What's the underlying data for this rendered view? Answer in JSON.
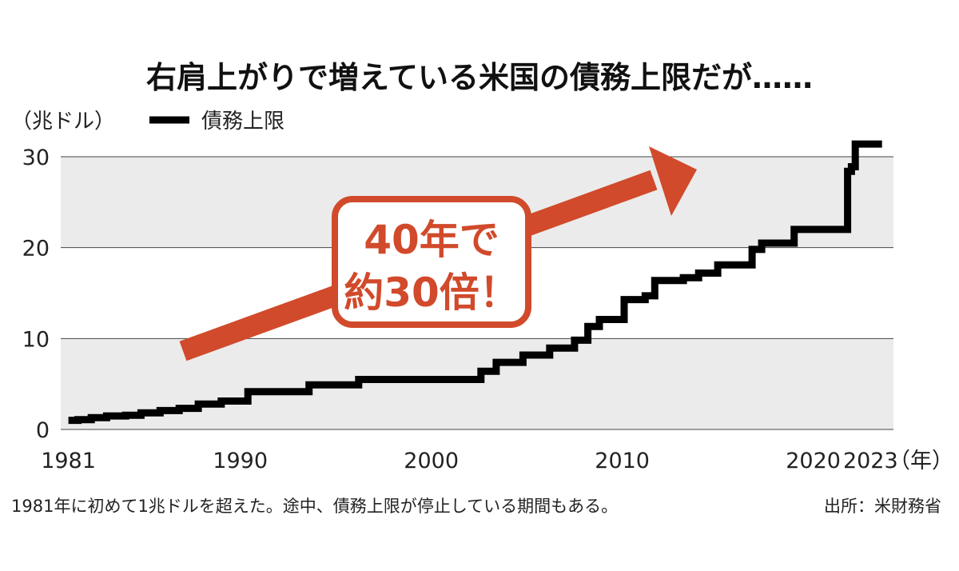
{
  "colors": {
    "band": "#ebebeb",
    "grid": "#444444",
    "series": "#000000",
    "accent": "#d14a2b",
    "text": "#222222"
  },
  "chart_data": {
    "type": "line",
    "title": "右肩上がりで増えている米国の債務上限だが……",
    "unit_label": "（兆ドル）",
    "x_suffix_label": "（年）",
    "ylim": [
      0,
      30
    ],
    "yticks": [
      "0",
      "10",
      "20",
      "30"
    ],
    "xlim": [
      1980.6,
      2024.2
    ],
    "xtick_values": [
      1981,
      1990,
      2000,
      2010,
      2020,
      2023
    ],
    "xtick_labels": [
      "1981",
      "1990",
      "2000",
      "2010",
      "2020",
      "2023"
    ],
    "grid": "horizontal",
    "background": "alternating gray bands",
    "legend_position": "top-left",
    "series": [
      {
        "name": "債務上限",
        "step_points": [
          [
            1981.0,
            1.0
          ],
          [
            1981.5,
            1.08
          ],
          [
            1982.2,
            1.29
          ],
          [
            1983.0,
            1.49
          ],
          [
            1984.0,
            1.57
          ],
          [
            1984.8,
            1.82
          ],
          [
            1985.8,
            2.08
          ],
          [
            1986.8,
            2.32
          ],
          [
            1987.8,
            2.8
          ],
          [
            1989.0,
            3.12
          ],
          [
            1990.4,
            4.15
          ],
          [
            1993.6,
            4.9
          ],
          [
            1996.2,
            5.5
          ],
          [
            2002.6,
            6.4
          ],
          [
            2003.4,
            7.38
          ],
          [
            2004.8,
            8.18
          ],
          [
            2006.2,
            8.96
          ],
          [
            2007.5,
            9.82
          ],
          [
            2008.2,
            11.32
          ],
          [
            2008.8,
            12.1
          ],
          [
            2010.1,
            14.29
          ],
          [
            2011.2,
            14.7
          ],
          [
            2011.7,
            16.39
          ],
          [
            2013.2,
            16.7
          ],
          [
            2014.0,
            17.2
          ],
          [
            2015.0,
            18.1
          ],
          [
            2016.8,
            19.8
          ],
          [
            2017.3,
            20.5
          ],
          [
            2019.0,
            22.0
          ],
          [
            2021.8,
            28.4
          ],
          [
            2022.0,
            28.9
          ],
          [
            2022.2,
            31.4
          ],
          [
            2023.6,
            31.4
          ]
        ]
      }
    ],
    "annotations": [
      {
        "type": "arrow",
        "direction": "up-right"
      },
      {
        "type": "callout",
        "lines": [
          "40年で",
          "約30倍！"
        ]
      }
    ],
    "footnote": "1981年に初めて1兆ドルを超えた。途中、債務上限が停止している期間もある。",
    "source": "出所：米財務省"
  }
}
